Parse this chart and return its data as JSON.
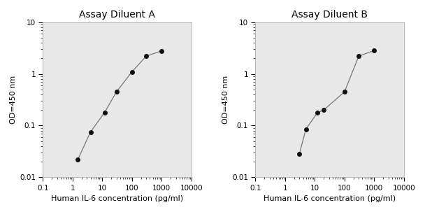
{
  "panel_A": {
    "title": "Assay Diluent A",
    "x": [
      1.5,
      4,
      12,
      30,
      100,
      300,
      1000
    ],
    "y": [
      0.022,
      0.075,
      0.18,
      0.45,
      1.1,
      2.2,
      2.8
    ]
  },
  "panel_B": {
    "title": "Assay Diluent B",
    "x": [
      3,
      5,
      12,
      20,
      100,
      300,
      1000
    ],
    "y": [
      0.028,
      0.085,
      0.175,
      0.2,
      0.45,
      2.2,
      2.85
    ]
  },
  "xlabel": "Human IL-6 concentration (pg/ml)",
  "ylabel": "OD=450 nm",
  "xlim": [
    0.1,
    10000
  ],
  "ylim": [
    0.01,
    10
  ],
  "line_color": "#777777",
  "marker_color": "#111111",
  "marker_size": 4,
  "bg_color": "#ffffff",
  "plot_bg_color": "#e8e8e8",
  "title_fontsize": 10,
  "label_fontsize": 8,
  "tick_fontsize": 7.5
}
